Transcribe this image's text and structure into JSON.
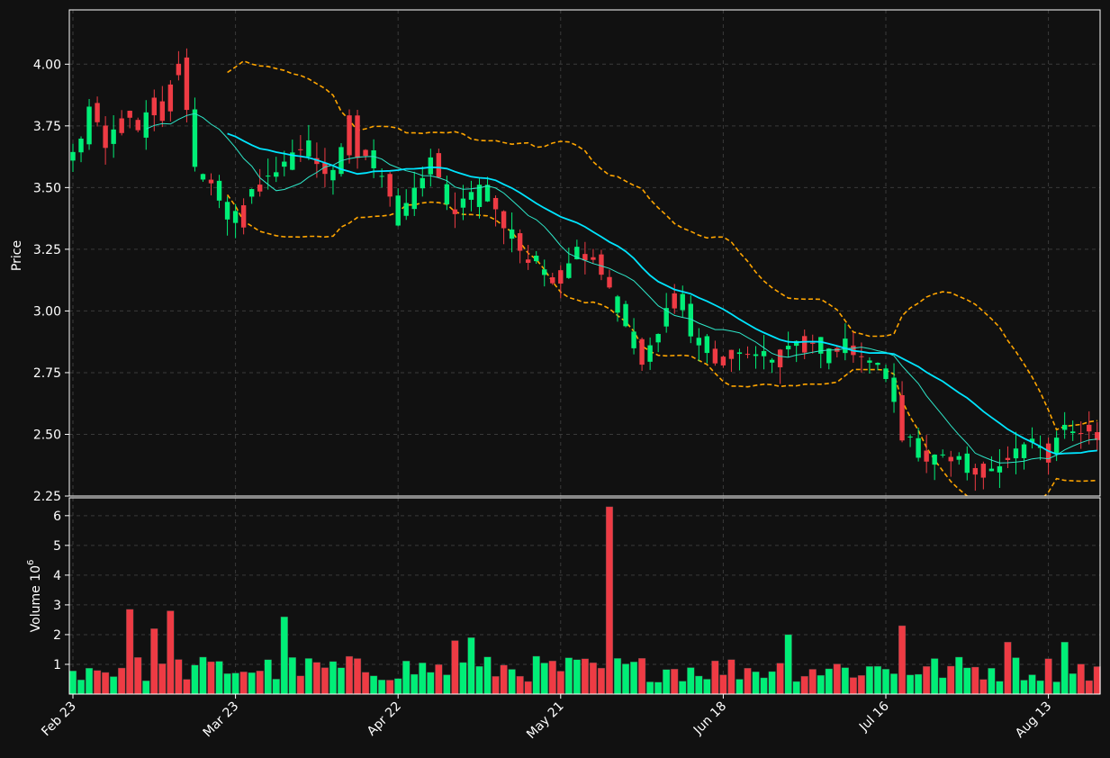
{
  "chart_data": {
    "type": "candlestick",
    "title": "",
    "price_panel": {
      "ylabel": "Price",
      "ylim": [
        2.25,
        4.22
      ],
      "yticks": [
        2.25,
        2.5,
        2.75,
        3.0,
        3.25,
        3.5,
        3.75,
        4.0
      ],
      "ytick_labels": [
        "2.25",
        "2.50",
        "2.75",
        "3.00",
        "3.25",
        "3.50",
        "3.75",
        "4.00"
      ],
      "grid": true
    },
    "volume_panel": {
      "ylabel": "Volume",
      "ylabel_exponent": "10",
      "ylabel_power": "6",
      "ylim": [
        0,
        6.6
      ],
      "yticks": [
        1,
        2,
        3,
        4,
        5,
        6
      ],
      "ytick_labels": [
        "1",
        "2",
        "3",
        "4",
        "5",
        "6"
      ],
      "grid": true
    },
    "xticks": [
      {
        "index": 0,
        "label": "Feb 23"
      },
      {
        "index": 20,
        "label": "Mar 23"
      },
      {
        "index": 40,
        "label": "Apr 22"
      },
      {
        "index": 60,
        "label": "May 21"
      },
      {
        "index": 80,
        "label": "Jun 18"
      },
      {
        "index": 100,
        "label": "Jul 16"
      },
      {
        "index": 120,
        "label": "Aug 13"
      }
    ],
    "num_sessions": 127,
    "ohlc_keyframes": [
      [
        0,
        3.6
      ],
      [
        2,
        3.82
      ],
      [
        4,
        3.65
      ],
      [
        6,
        3.8
      ],
      [
        8,
        3.72
      ],
      [
        10,
        3.85
      ],
      [
        11,
        3.78
      ],
      [
        12,
        3.9
      ],
      [
        13,
        4.02
      ],
      [
        15,
        3.6
      ],
      [
        17,
        3.5
      ],
      [
        19,
        3.35
      ],
      [
        20,
        3.38
      ],
      [
        22,
        3.48
      ],
      [
        24,
        3.56
      ],
      [
        26,
        3.58
      ],
      [
        28,
        3.66
      ],
      [
        30,
        3.6
      ],
      [
        32,
        3.55
      ],
      [
        34,
        3.8
      ],
      [
        35,
        3.62
      ],
      [
        37,
        3.58
      ],
      [
        39,
        3.48
      ],
      [
        40,
        3.35
      ],
      [
        42,
        3.48
      ],
      [
        44,
        3.62
      ],
      [
        46,
        3.42
      ],
      [
        48,
        3.45
      ],
      [
        50,
        3.5
      ],
      [
        52,
        3.4
      ],
      [
        54,
        3.3
      ],
      [
        56,
        3.2
      ],
      [
        58,
        3.15
      ],
      [
        60,
        3.18
      ],
      [
        62,
        3.25
      ],
      [
        64,
        3.22
      ],
      [
        66,
        3.1
      ],
      [
        68,
        2.92
      ],
      [
        70,
        2.78
      ],
      [
        72,
        2.9
      ],
      [
        74,
        3.1
      ],
      [
        76,
        2.9
      ],
      [
        78,
        2.82
      ],
      [
        80,
        2.78
      ],
      [
        82,
        2.85
      ],
      [
        84,
        2.8
      ],
      [
        86,
        2.82
      ],
      [
        88,
        2.85
      ],
      [
        90,
        2.88
      ],
      [
        92,
        2.84
      ],
      [
        94,
        2.82
      ],
      [
        96,
        2.84
      ],
      [
        98,
        2.78
      ],
      [
        99,
        2.76
      ],
      [
        100,
        2.72
      ],
      [
        101,
        2.62
      ],
      [
        102,
        2.5
      ],
      [
        104,
        2.43
      ],
      [
        106,
        2.38
      ],
      [
        108,
        2.42
      ],
      [
        110,
        2.36
      ],
      [
        112,
        2.33
      ],
      [
        114,
        2.4
      ],
      [
        116,
        2.43
      ],
      [
        118,
        2.45
      ],
      [
        120,
        2.38
      ],
      [
        122,
        2.55
      ],
      [
        124,
        2.52
      ],
      [
        126,
        2.5
      ]
    ],
    "sma_long": {
      "start": 19,
      "color": "#00e5ff",
      "width": "thick"
    },
    "sma_short": {
      "start": 9,
      "color": "#2ee6c8",
      "width": "thin"
    },
    "bollinger_bands": {
      "start": 19,
      "color": "#ffa500",
      "style": "dashed"
    },
    "volume_spikes": [
      {
        "index": 7,
        "value": 2.85
      },
      {
        "index": 10,
        "value": 2.2
      },
      {
        "index": 12,
        "value": 2.8
      },
      {
        "index": 26,
        "value": 2.6
      },
      {
        "index": 47,
        "value": 1.8
      },
      {
        "index": 49,
        "value": 1.9
      },
      {
        "index": 66,
        "value": 6.3
      },
      {
        "index": 88,
        "value": 2.0
      },
      {
        "index": 102,
        "value": 2.3
      },
      {
        "index": 122,
        "value": 1.75
      },
      {
        "index": 115,
        "value": 1.75
      }
    ],
    "colors": {
      "background": "#111111",
      "up": "#00ee77",
      "down": "#ee3b44",
      "grid": "#3a3a3a",
      "axis": "#ffffff"
    }
  }
}
